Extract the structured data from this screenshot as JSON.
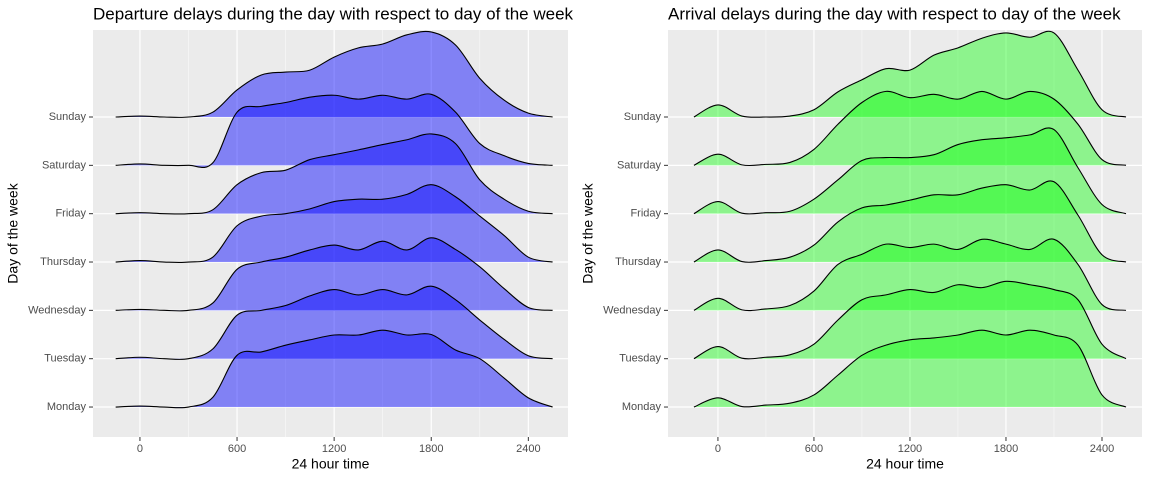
{
  "chart_data": [
    {
      "type": "ridgeline",
      "title": "Departure delays during the day with respect to day of the week",
      "xlabel": "24 hour time",
      "ylabel": "Day of the week",
      "categories": [
        "Monday",
        "Tuesday",
        "Wednesday",
        "Thursday",
        "Friday",
        "Saturday",
        "Sunday"
      ],
      "x": [
        -150,
        0,
        150,
        300,
        450,
        600,
        750,
        900,
        1050,
        1200,
        1350,
        1500,
        1650,
        1800,
        1950,
        2100,
        2250,
        2400,
        2550
      ],
      "series": [
        {
          "values": [
            0,
            0.02,
            0,
            0,
            0.2,
            1.07,
            1.14,
            1.28,
            1.39,
            1.49,
            1.49,
            1.59,
            1.49,
            1.5,
            1.18,
            1.0,
            0.6,
            0.19,
            0
          ]
        },
        {
          "values": [
            0,
            0.03,
            0,
            0,
            0.2,
            0.9,
            1.0,
            1.1,
            1.3,
            1.43,
            1.32,
            1.43,
            1.32,
            1.5,
            1.22,
            0.8,
            0.4,
            0.06,
            0
          ]
        },
        {
          "values": [
            0,
            0.02,
            0,
            0,
            0.15,
            0.85,
            1.0,
            1.1,
            1.25,
            1.35,
            1.25,
            1.43,
            1.25,
            1.5,
            1.26,
            0.9,
            0.45,
            0.06,
            0
          ]
        },
        {
          "values": [
            0,
            0.03,
            0,
            0,
            0.1,
            0.75,
            0.95,
            1.0,
            1.1,
            1.25,
            1.3,
            1.3,
            1.4,
            1.6,
            1.35,
            0.95,
            0.55,
            0.1,
            0
          ]
        },
        {
          "values": [
            0,
            0.02,
            0,
            0,
            0.08,
            0.6,
            0.85,
            0.9,
            1.12,
            1.22,
            1.32,
            1.43,
            1.53,
            1.65,
            1.45,
            0.7,
            0.3,
            0.05,
            0
          ]
        },
        {
          "values": [
            0,
            0.03,
            0,
            0,
            0.05,
            1.1,
            1.22,
            1.3,
            1.41,
            1.45,
            1.37,
            1.45,
            1.37,
            1.47,
            1.1,
            0.45,
            0.2,
            0.04,
            0
          ]
        },
        {
          "values": [
            0,
            0.02,
            0,
            0,
            0.1,
            0.56,
            0.87,
            0.93,
            0.97,
            1.24,
            1.43,
            1.51,
            1.7,
            1.76,
            1.49,
            0.8,
            0.35,
            0.08,
            0
          ]
        }
      ],
      "color": "#0000ff",
      "alpha": 0.45,
      "xlim": [
        -290,
        2645
      ],
      "xticks": [
        0,
        600,
        1200,
        1800,
        2400
      ],
      "xminor": [
        300,
        900,
        1500,
        2100
      ],
      "ylim": [
        0.38,
        8.8
      ],
      "grid": true
    },
    {
      "type": "ridgeline",
      "title": "Arrival delays during the day with respect to day of the week",
      "xlabel": "24 hour time",
      "ylabel": "Day of the week",
      "categories": [
        "Monday",
        "Tuesday",
        "Wednesday",
        "Thursday",
        "Friday",
        "Saturday",
        "Sunday"
      ],
      "x": [
        -150,
        0,
        150,
        300,
        450,
        600,
        750,
        900,
        1050,
        1200,
        1350,
        1500,
        1650,
        1800,
        1950,
        2100,
        2250,
        2400,
        2550
      ],
      "series": [
        {
          "values": [
            0,
            0.19,
            0.01,
            0.04,
            0.08,
            0.25,
            0.66,
            1.07,
            1.28,
            1.39,
            1.43,
            1.49,
            1.59,
            1.49,
            1.59,
            1.49,
            1.28,
            0.25,
            0
          ]
        },
        {
          "values": [
            0,
            0.25,
            0.01,
            0.03,
            0.08,
            0.3,
            0.8,
            1.22,
            1.32,
            1.43,
            1.37,
            1.53,
            1.47,
            1.6,
            1.53,
            1.43,
            1.22,
            0.3,
            0
          ]
        },
        {
          "values": [
            0,
            0.25,
            0.01,
            0.03,
            0.1,
            0.4,
            0.95,
            1.16,
            1.37,
            1.3,
            1.37,
            1.26,
            1.47,
            1.37,
            1.26,
            1.47,
            0.95,
            0.12,
            0
          ]
        },
        {
          "values": [
            0,
            0.25,
            0.01,
            0.03,
            0.1,
            0.35,
            0.83,
            1.12,
            1.18,
            1.28,
            1.39,
            1.39,
            1.53,
            1.6,
            1.49,
            1.66,
            0.97,
            0.15,
            0
          ]
        },
        {
          "values": [
            0,
            0.25,
            0.01,
            0.02,
            0.05,
            0.3,
            0.7,
            1.1,
            1.16,
            1.16,
            1.22,
            1.43,
            1.53,
            1.57,
            1.63,
            1.74,
            0.95,
            0.19,
            0
          ]
        },
        {
          "values": [
            0,
            0.23,
            0.01,
            0.02,
            0.06,
            0.33,
            0.85,
            1.3,
            1.53,
            1.4,
            1.47,
            1.37,
            1.53,
            1.37,
            1.53,
            1.37,
            0.85,
            0.12,
            0
          ]
        },
        {
          "values": [
            0,
            0.25,
            0.02,
            0,
            0.02,
            0.15,
            0.52,
            0.77,
            1.0,
            0.97,
            1.28,
            1.43,
            1.63,
            1.74,
            1.65,
            1.74,
            0.97,
            0.15,
            0
          ]
        }
      ],
      "color": "#00ff00",
      "alpha": 0.4,
      "xlim": [
        -312,
        2650
      ],
      "xticks": [
        0,
        600,
        1200,
        1800,
        2400
      ],
      "xminor": [
        300,
        900,
        1500,
        2100
      ],
      "ylim": [
        0.38,
        8.8
      ],
      "grid": true
    }
  ]
}
